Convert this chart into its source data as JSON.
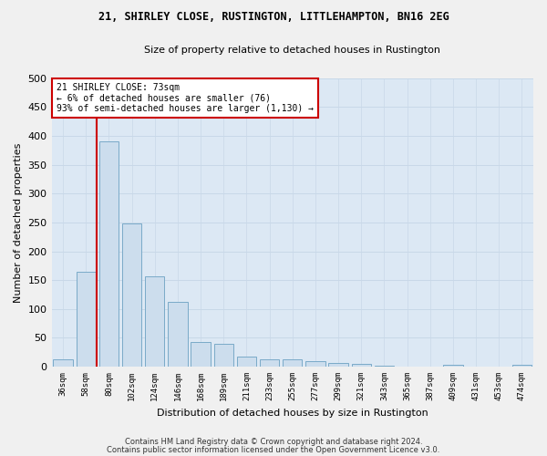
{
  "title": "21, SHIRLEY CLOSE, RUSTINGTON, LITTLEHAMPTON, BN16 2EG",
  "subtitle": "Size of property relative to detached houses in Rustington",
  "xlabel": "Distribution of detached houses by size in Rustington",
  "ylabel": "Number of detached properties",
  "categories": [
    "36sqm",
    "58sqm",
    "80sqm",
    "102sqm",
    "124sqm",
    "146sqm",
    "168sqm",
    "189sqm",
    "211sqm",
    "233sqm",
    "255sqm",
    "277sqm",
    "299sqm",
    "321sqm",
    "343sqm",
    "365sqm",
    "387sqm",
    "409sqm",
    "431sqm",
    "453sqm",
    "474sqm"
  ],
  "values": [
    12,
    165,
    390,
    248,
    157,
    113,
    43,
    39,
    17,
    13,
    13,
    9,
    6,
    5,
    2,
    0,
    0,
    4,
    0,
    0,
    4
  ],
  "bar_color": "#ccdded",
  "bar_edge_color": "#7aaac8",
  "red_line_x": 1.45,
  "annotation_text": "21 SHIRLEY CLOSE: 73sqm\n← 6% of detached houses are smaller (76)\n93% of semi-detached houses are larger (1,130) →",
  "annotation_box_facecolor": "#ffffff",
  "annotation_box_edgecolor": "#cc0000",
  "footer_line1": "Contains HM Land Registry data © Crown copyright and database right 2024.",
  "footer_line2": "Contains public sector information licensed under the Open Government Licence v3.0.",
  "grid_color": "#c8d8e8",
  "bg_color": "#dce8f4",
  "fig_bg_color": "#f0f0f0",
  "ylim": [
    0,
    500
  ],
  "yticks": [
    0,
    50,
    100,
    150,
    200,
    250,
    300,
    350,
    400,
    450,
    500
  ]
}
